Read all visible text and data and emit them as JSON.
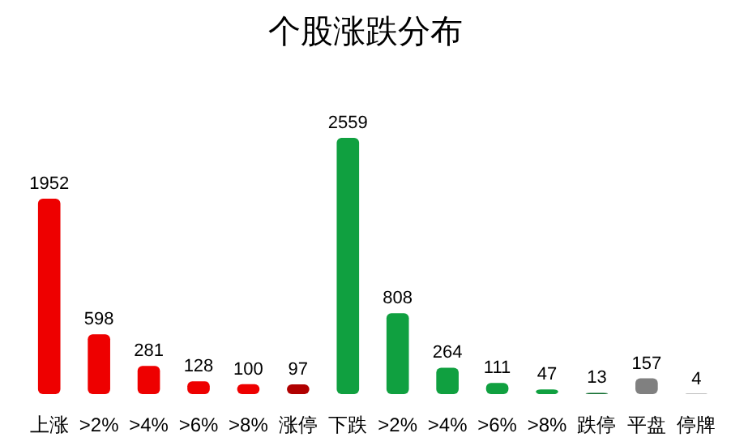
{
  "chart_data": {
    "type": "bar",
    "title": "个股涨跌分布",
    "categories": [
      "上涨",
      ">2%",
      ">4%",
      ">6%",
      ">8%",
      "涨停",
      "下跌",
      ">2%",
      ">4%",
      ">6%",
      ">8%",
      "跌停",
      "平盘",
      "停牌"
    ],
    "values": [
      1952,
      598,
      281,
      128,
      100,
      97,
      2559,
      808,
      264,
      111,
      47,
      13,
      157,
      4
    ],
    "colors": [
      "#ee0000",
      "#ee0000",
      "#ee0000",
      "#ee0000",
      "#ee0000",
      "#b00000",
      "#10a040",
      "#10a040",
      "#10a040",
      "#10a040",
      "#10a040",
      "#0a6a2a",
      "#808080",
      "#808080"
    ],
    "data_labels": true
  }
}
